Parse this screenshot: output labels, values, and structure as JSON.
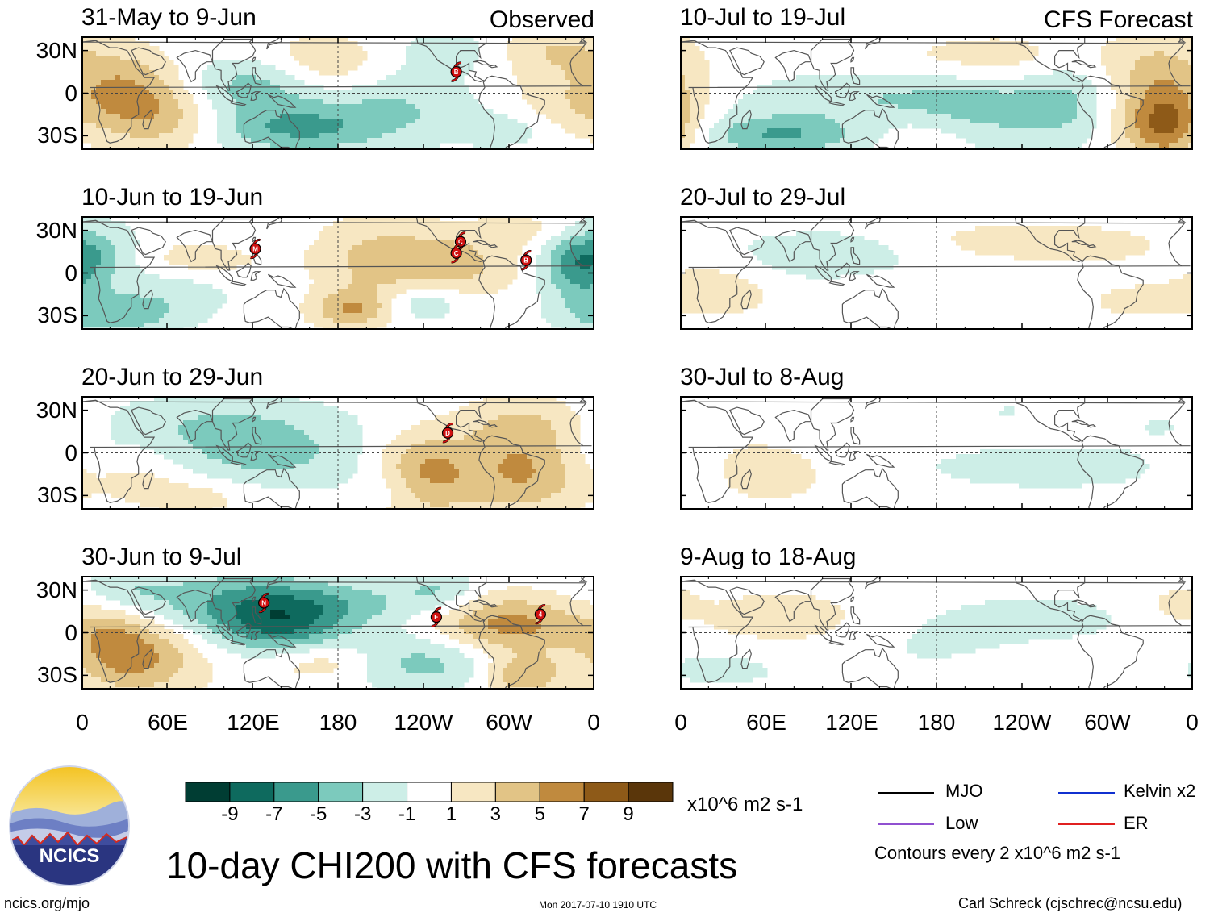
{
  "panels": [
    {
      "title": "31-May to 9-Jun",
      "tag": "Observed",
      "storms": [
        {
          "letter": "B",
          "lon": -97,
          "lat": 15
        }
      ]
    },
    {
      "title": "10-Jun to 19-Jun",
      "tag": "",
      "storms": [
        {
          "letter": "M",
          "lon": 122,
          "lat": 17
        },
        {
          "letter": "C",
          "lon": -94,
          "lat": 22
        },
        {
          "letter": "C",
          "lon": -97,
          "lat": 14
        },
        {
          "letter": "B",
          "lon": -48,
          "lat": 9
        }
      ]
    },
    {
      "title": "20-Jun to 29-Jun",
      "tag": "",
      "storms": [
        {
          "letter": "D",
          "lon": -103,
          "lat": 14
        }
      ]
    },
    {
      "title": "30-Jun to 9-Jul",
      "tag": "",
      "storms": [
        {
          "letter": "N",
          "lon": 128,
          "lat": 21
        },
        {
          "letter": "E",
          "lon": -111,
          "lat": 11
        },
        {
          "letter": "4",
          "lon": -38,
          "lat": 13
        }
      ]
    },
    {
      "title": "10-Jul to 19-Jul",
      "tag": "CFS Forecast",
      "storms": []
    },
    {
      "title": "20-Jul to 29-Jul",
      "tag": "",
      "storms": []
    },
    {
      "title": "30-Jul to 8-Aug",
      "tag": "",
      "storms": []
    },
    {
      "title": "9-Aug to 18-Aug",
      "tag": "",
      "storms": []
    }
  ],
  "lat_labels": [
    "30N",
    "0",
    "30S"
  ],
  "lon_labels": [
    "0",
    "60E",
    "120E",
    "180",
    "120W",
    "60W",
    "0"
  ],
  "colorbar": {
    "colors": [
      "#003d33",
      "#0e6a5e",
      "#3a9a8d",
      "#7ccabd",
      "#cdeee7",
      "#ffffff",
      "#f7e7c2",
      "#e2c486",
      "#c08a3e",
      "#8e5a18",
      "#5a360a"
    ],
    "labels": [
      "-9",
      "-7",
      "-5",
      "-3",
      "-1",
      "1",
      "3",
      "5",
      "7",
      "9"
    ],
    "units": "x10^6 m2 s-1"
  },
  "legend": {
    "items": [
      {
        "label": "MJO",
        "color": "#000000"
      },
      {
        "label": "Kelvin x2",
        "color": "#1030d0"
      },
      {
        "label": "Low",
        "color": "#9050d0"
      },
      {
        "label": "ER",
        "color": "#e02020"
      }
    ],
    "note": "Contours every 2 x10^6 m2 s-1"
  },
  "main_title": "10-day CHI200 with CFS forecasts",
  "logo_text": "NCICS",
  "footer": {
    "left": "ncics.org/mjo",
    "center": "Mon 2017-07-10 1910 UTC",
    "right": "Carl Schreck (cjschrec@ncsu.edu)"
  }
}
